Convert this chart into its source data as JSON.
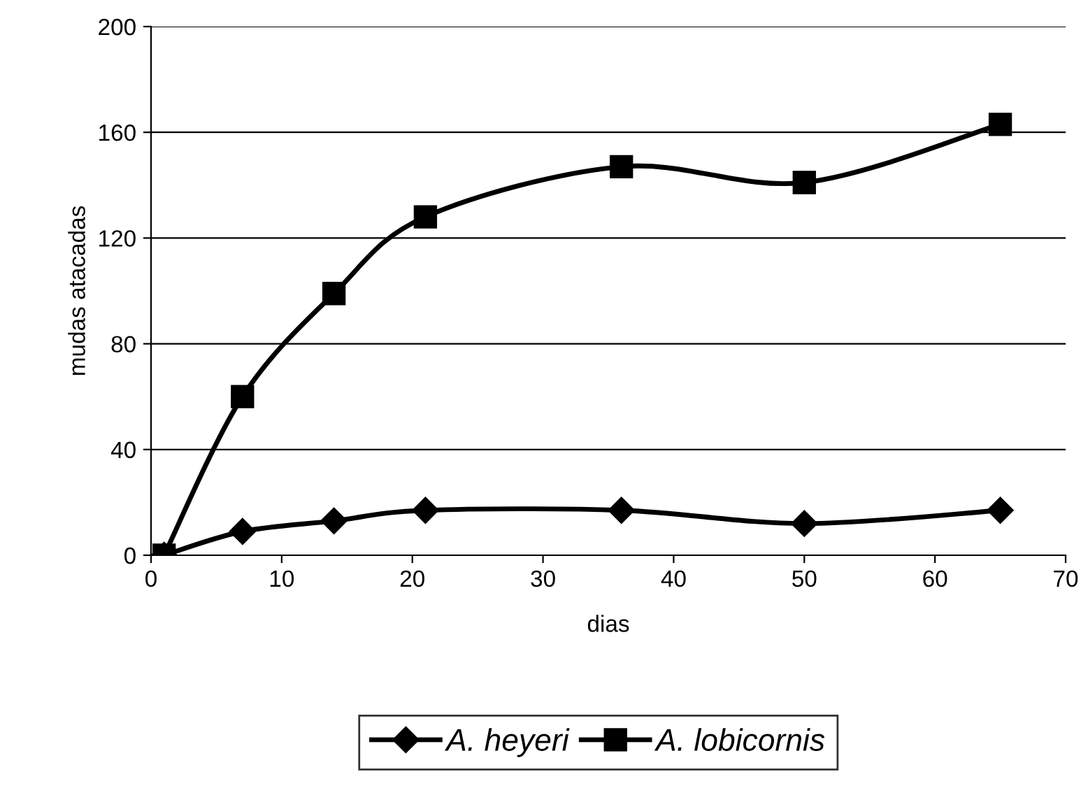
{
  "chart_data": {
    "type": "line",
    "xlabel": "dias",
    "ylabel": "mudas atacadas",
    "x": [
      1,
      7,
      14,
      21,
      36,
      50,
      65
    ],
    "series": [
      {
        "name": "A. heyeri",
        "color": "#000000",
        "marker": "diamond",
        "values": [
          0,
          9,
          13,
          17,
          17,
          12,
          17
        ]
      },
      {
        "name": "A. lobicornis",
        "color": "#000000",
        "marker": "square",
        "values": [
          0,
          60,
          99,
          128,
          147,
          141,
          163
        ]
      }
    ],
    "xlim": [
      0,
      70
    ],
    "xticks": [
      0,
      10,
      20,
      30,
      40,
      50,
      60,
      70
    ],
    "ylim": [
      0,
      200
    ],
    "yticks": [
      0,
      40,
      80,
      120,
      160,
      200
    ],
    "grid": "y",
    "legend": "bottom",
    "line_style": "solid"
  }
}
